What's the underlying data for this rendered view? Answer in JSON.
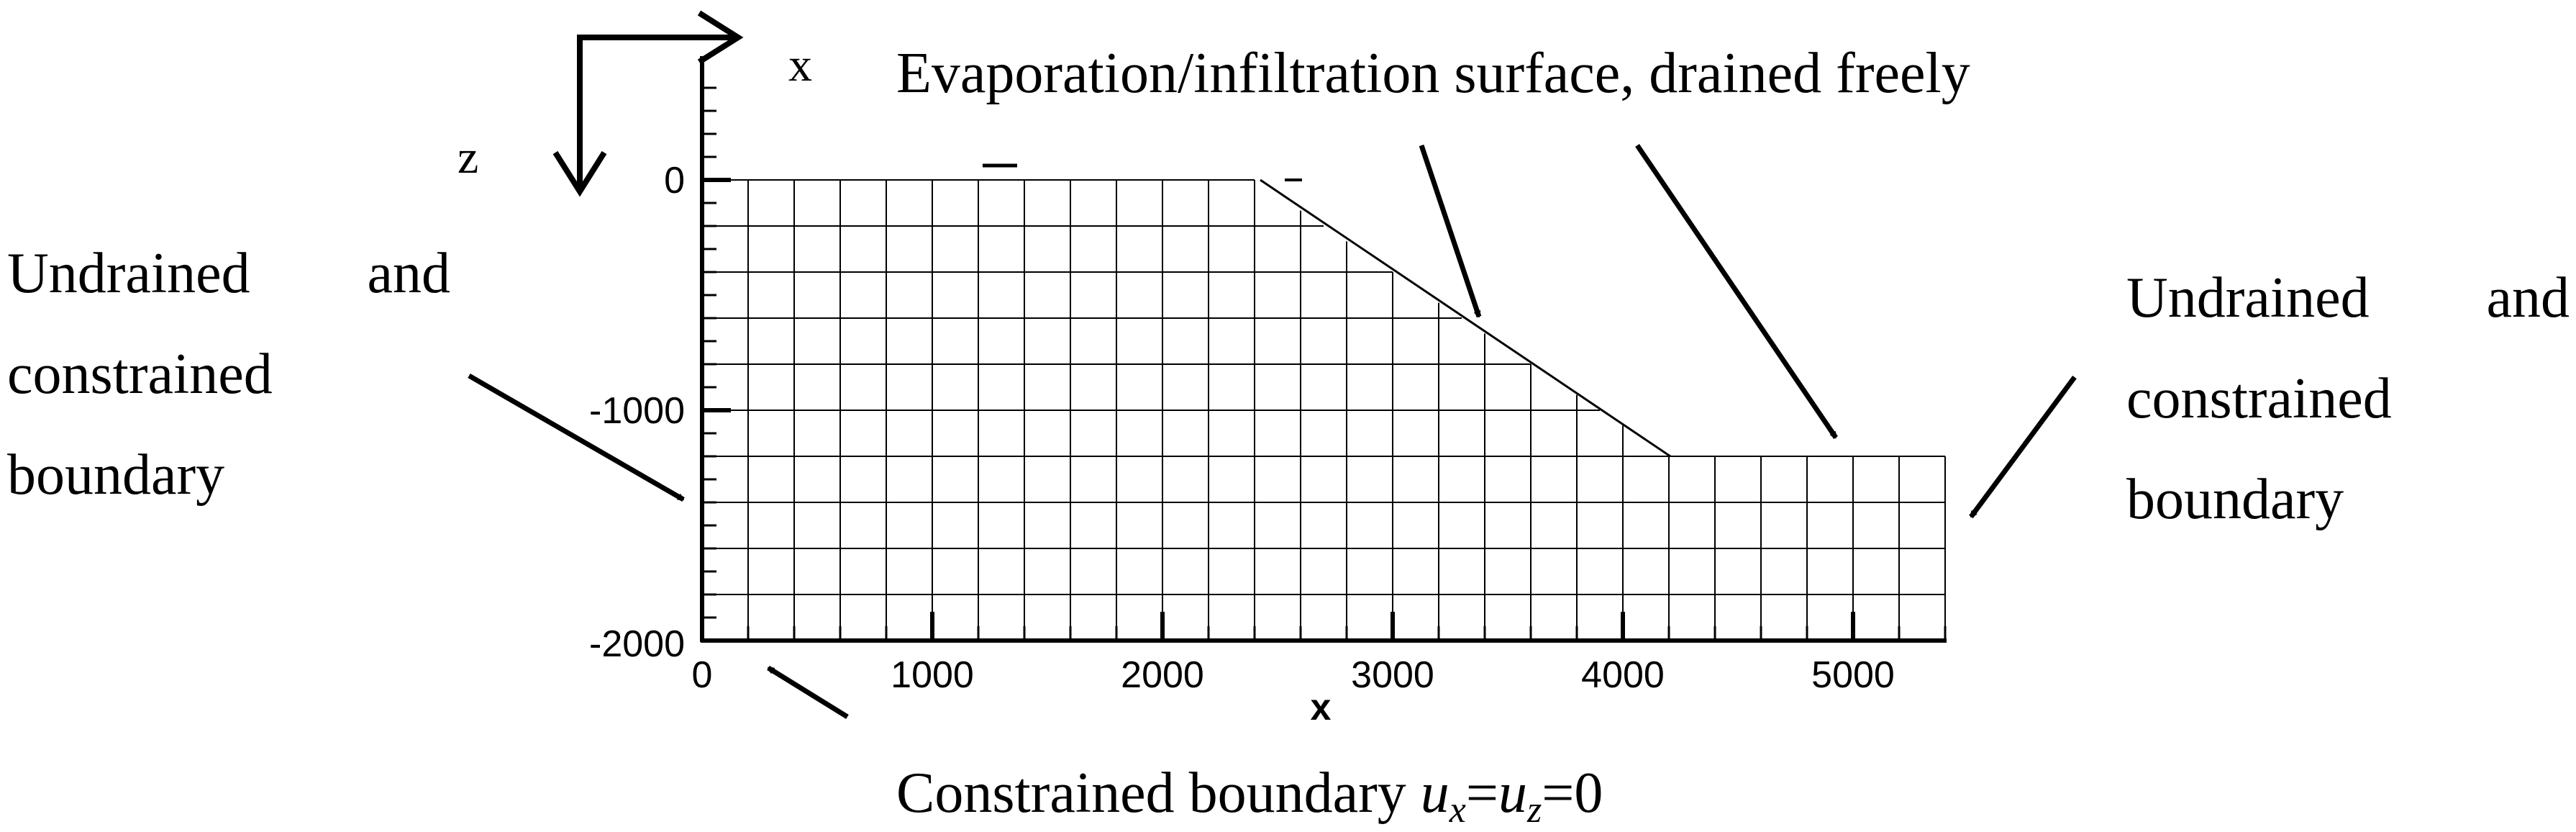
{
  "coord_axes": {
    "x_label": "x",
    "z_label": "z"
  },
  "plot": {
    "x_ticks": [
      "0",
      "1000",
      "2000",
      "3000",
      "4000",
      "5000"
    ],
    "y_ticks": [
      "0",
      "-1000",
      "-2000"
    ],
    "x_axis_stub": "x",
    "mesh": {
      "x_range": [
        0,
        5400
      ],
      "y_range": [
        -2000,
        0
      ],
      "top_surface_profile": [
        [
          0,
          0
        ],
        [
          2400,
          0
        ],
        [
          4200,
          -1200
        ],
        [
          5400,
          -1200
        ]
      ]
    }
  },
  "labels": {
    "top_surface": "Evaporation/infiltration surface, drained freely",
    "left_boundary": [
      "Undrained",
      "and",
      "constrained",
      "boundary"
    ],
    "right_boundary": [
      "Undrained",
      "and",
      "constrained",
      "boundary"
    ],
    "bottom_prefix": "Constrained boundary ",
    "bottom_u": "u",
    "bottom_sub_x": "x",
    "bottom_eq1": "=",
    "bottom_sub_z": "z",
    "bottom_eq2": "=0"
  }
}
